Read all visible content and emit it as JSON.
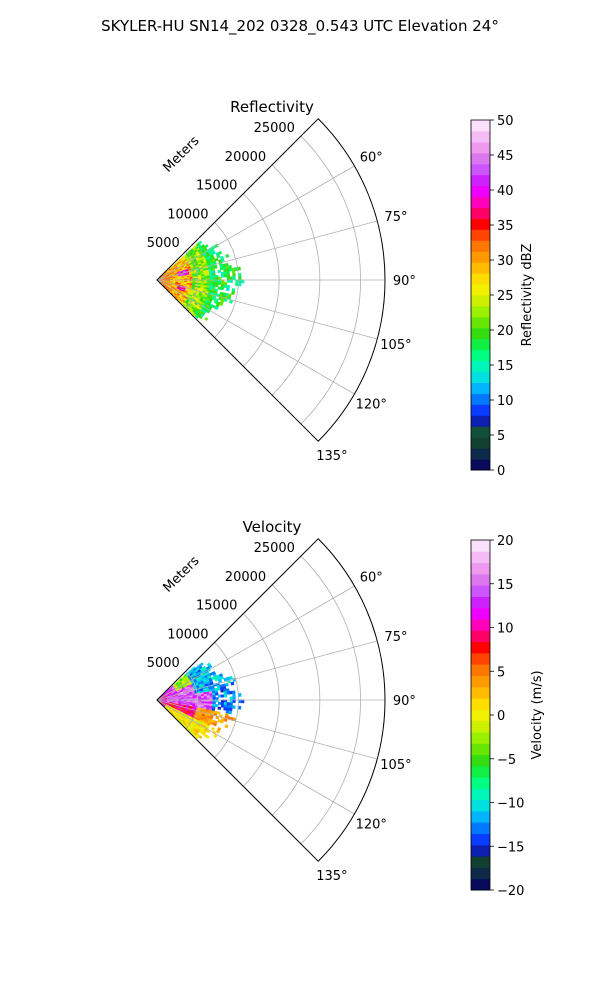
{
  "figure": {
    "title": "SKYLER-HU  SN14_202  0328_0.543 UTC Elevation 24°"
  },
  "chart_data": [
    {
      "type": "heatmap",
      "title": "Reflectivity",
      "projection": "polar sector",
      "range_label": "Meters",
      "range_ticks": [
        5000,
        10000,
        15000,
        20000,
        25000
      ],
      "range_tick_labels": [
        "5000",
        "10000",
        "15000",
        "20000",
        "25000"
      ],
      "rlim": [
        0,
        28000
      ],
      "theta_range_deg": [
        45,
        135
      ],
      "theta_ticks": [
        60,
        75,
        90,
        105,
        120,
        135
      ],
      "theta_tick_labels": [
        "60°",
        "75°",
        "90°",
        "105°",
        "120°",
        "135°"
      ],
      "grid": true,
      "colorbar": {
        "label": "Reflectivity dBZ",
        "range": [
          0,
          50
        ],
        "ticks": [
          0,
          5,
          10,
          15,
          20,
          25,
          30,
          35,
          40,
          45,
          50
        ],
        "tick_labels": [
          "0",
          "5",
          "10",
          "15",
          "20",
          "25",
          "30",
          "35",
          "40",
          "45",
          "50"
        ],
        "colors": [
          "#0a0a5c",
          "#0d2a4a",
          "#123f30",
          "#114f3a",
          "#0d1fb0",
          "#0a3cff",
          "#0078ff",
          "#00b4ff",
          "#00e0e0",
          "#00f5b8",
          "#00ff80",
          "#11ee44",
          "#33dd11",
          "#66e600",
          "#99f000",
          "#ccf000",
          "#f0f000",
          "#ffdd00",
          "#ffbb00",
          "#ff9900",
          "#ff7700",
          "#ff4400",
          "#ff0000",
          "#ff0066",
          "#ff00bb",
          "#ee00ff",
          "#cc22ff",
          "#cc55ff",
          "#dd77ee",
          "#ee99ee",
          "#f5bbf5",
          "#fbe0fb"
        ]
      },
      "echo": {
        "min_range": 0,
        "max_range": 10500,
        "theta_span_deg": [
          48,
          132
        ],
        "description_values": "core 25-40 dBZ within 4000 m; 15-22 dBZ beyond 6000 m"
      }
    },
    {
      "type": "heatmap",
      "title": "Velocity",
      "projection": "polar sector",
      "range_label": "Meters",
      "range_ticks": [
        5000,
        10000,
        15000,
        20000,
        25000
      ],
      "range_tick_labels": [
        "5000",
        "10000",
        "15000",
        "20000",
        "25000"
      ],
      "rlim": [
        0,
        28000
      ],
      "theta_range_deg": [
        45,
        135
      ],
      "theta_ticks": [
        60,
        75,
        90,
        105,
        120,
        135
      ],
      "theta_tick_labels": [
        "60°",
        "75°",
        "90°",
        "105°",
        "120°",
        "135°"
      ],
      "grid": true,
      "colorbar": {
        "label": "Velocity (m/s)",
        "range": [
          -20,
          20
        ],
        "ticks": [
          -20,
          -15,
          -10,
          -5,
          0,
          5,
          10,
          15,
          20
        ],
        "tick_labels": [
          "−20",
          "−15",
          "−10",
          "−5",
          "0",
          "5",
          "10",
          "15",
          "20"
        ],
        "colors": [
          "#0a0a5c",
          "#0d2a4a",
          "#123f30",
          "#0d1fb0",
          "#0a3cff",
          "#0078ff",
          "#00b4ff",
          "#00e0e0",
          "#00f5b8",
          "#00ff80",
          "#11ee44",
          "#33dd11",
          "#66e600",
          "#99f000",
          "#ccf000",
          "#f0f000",
          "#ffdd00",
          "#ffbb00",
          "#ff9900",
          "#ff7700",
          "#ff4400",
          "#ff0000",
          "#ff0066",
          "#ff00bb",
          "#ee00ff",
          "#cc22ff",
          "#cc55ff",
          "#dd77ee",
          "#ee99ee",
          "#f5bbf5",
          "#fbe0fb"
        ]
      },
      "echo": {
        "min_range": 0,
        "max_range": 10500,
        "theta_span_deg": [
          48,
          132
        ],
        "description_values": "north-west sector -8 to -15 m/s; south and east +5 to +15 m/s"
      }
    }
  ]
}
